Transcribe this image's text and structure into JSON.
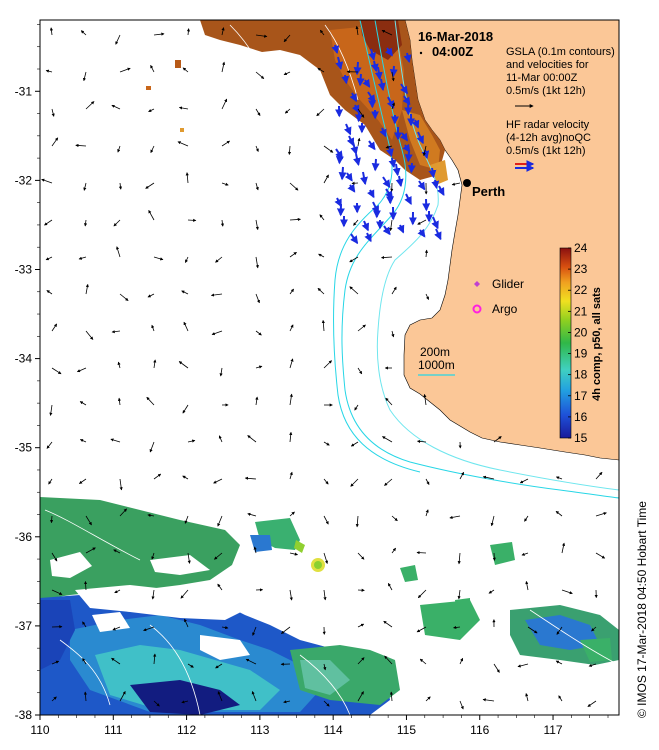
{
  "header": {
    "date": "16-Mar-2018",
    "time": "04:00Z"
  },
  "legend": {
    "gsla": [
      "GSLA (0.1m contours)",
      "and velocities for",
      "11-Mar 00:00Z",
      "0.5m/s (1kt 12h)"
    ],
    "hf": [
      "HF radar velocity",
      "(4-12h avg)noQC",
      "0.5m/s (1kt 12h)"
    ],
    "glider": "Glider",
    "argo": "Argo",
    "iso_200": "200m",
    "iso_1000": "1000m"
  },
  "place": {
    "name": "Perth"
  },
  "colorbar": {
    "title": "4h comp, p50, all sats",
    "ticks": [
      "15",
      "16",
      "17",
      "18",
      "19",
      "20",
      "21",
      "22",
      "23",
      "24"
    ],
    "min": 15,
    "max": 24
  },
  "axes": {
    "x_ticks": [
      "110",
      "111",
      "112",
      "113",
      "114",
      "115",
      "116",
      "117"
    ],
    "y_ticks": [
      "-31",
      "-32",
      "-33",
      "-34",
      "-35",
      "-36",
      "-37",
      "-38"
    ],
    "lon_range": [
      110,
      117.9
    ],
    "lat_range": [
      -38,
      -30.2
    ]
  },
  "credit": "© IMOS 17-Mar-2018 04:50 Hobart Time",
  "colors": {
    "land": "#fbc797",
    "isobath_200": "#6fe6ee",
    "isobath_1000": "#27d6e6",
    "hf_arrow": "#1a2be0",
    "hf_key_red": "#e0201a",
    "glider": "#c040d0",
    "argo": "#ff20e0"
  }
}
